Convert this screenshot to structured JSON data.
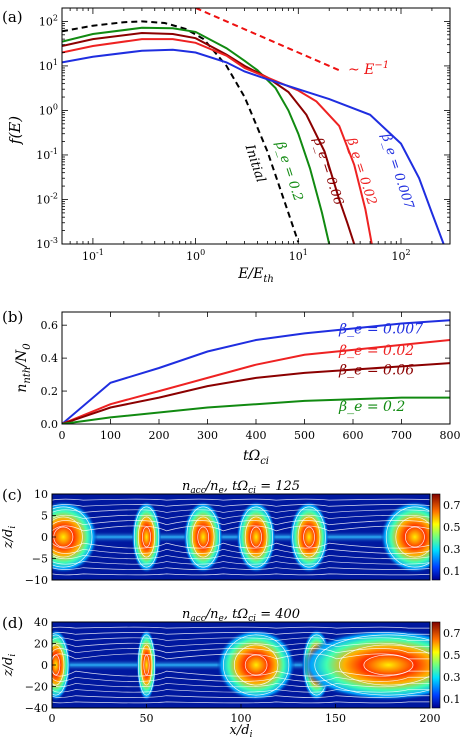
{
  "colors": {
    "beta_0007": "#1f2ee0",
    "beta_002": "#ee2222",
    "beta_006": "#8b0000",
    "beta_02": "#118a11",
    "initial": "#000000",
    "powerlaw": "#ee1111"
  },
  "chart_data": [
    {
      "type": "line",
      "panel": "(a)",
      "xlabel": "E/E_th",
      "ylabel": "f(E)",
      "xscale": "log",
      "yscale": "log",
      "xlim": [
        0.05,
        300
      ],
      "ylim": [
        0.001,
        200
      ],
      "xticks": [
        "10^-1",
        "10^0",
        "10^1",
        "10^2"
      ],
      "yticks": [
        "10^-3",
        "10^-2",
        "10^-1",
        "10^0",
        "10^1",
        "10^2"
      ],
      "powerlaw_label": "~ E^-1",
      "powerlaw": {
        "x": [
          1.0,
          25
        ],
        "y": [
          200,
          8
        ]
      },
      "series": [
        {
          "name": "Initial",
          "style": "dashed",
          "color": "#000000",
          "label_x": 3.5,
          "label_y": 0.06,
          "x": [
            0.05,
            0.1,
            0.2,
            0.3,
            0.5,
            0.8,
            1.2,
            2,
            3,
            5,
            8,
            10
          ],
          "y": [
            60,
            80,
            96,
            100,
            92,
            68,
            40,
            10,
            2.0,
            0.12,
            0.005,
            0.0011
          ]
        },
        {
          "name": "β_e = 0.2",
          "style": "solid",
          "color": "#118a11",
          "label_x": 7.5,
          "label_y": 0.04,
          "x": [
            0.05,
            0.1,
            0.3,
            0.6,
            1,
            2,
            3,
            4,
            6,
            8,
            10,
            13,
            17,
            20
          ],
          "y": [
            35,
            52,
            72,
            70,
            58,
            25,
            13,
            8,
            3.2,
            1.0,
            0.3,
            0.05,
            0.005,
            0.001
          ]
        },
        {
          "name": "β_e = 0.06",
          "style": "solid",
          "color": "#8b0000",
          "label_x": 18,
          "label_y": 0.04,
          "x": [
            0.05,
            0.1,
            0.3,
            0.6,
            1,
            2,
            3,
            5,
            8,
            12,
            18,
            25,
            30,
            35
          ],
          "y": [
            28,
            40,
            55,
            52,
            42,
            18,
            10,
            5.5,
            2.6,
            0.8,
            0.12,
            0.01,
            0.003,
            0.001
          ]
        },
        {
          "name": "β_e = 0.02",
          "style": "solid",
          "color": "#ee2222",
          "label_x": 38,
          "label_y": 0.04,
          "x": [
            0.05,
            0.1,
            0.3,
            0.6,
            1,
            2,
            3,
            5,
            10,
            15,
            25,
            35,
            45,
            52
          ],
          "y": [
            20,
            28,
            40,
            40,
            33,
            17,
            9,
            5.5,
            2.8,
            1.6,
            0.45,
            0.06,
            0.006,
            0.001
          ]
        },
        {
          "name": "β_e = 0.007",
          "style": "solid",
          "color": "#1f2ee0",
          "label_x": 85,
          "label_y": 0.04,
          "x": [
            0.05,
            0.1,
            0.3,
            0.6,
            1,
            2,
            3,
            5,
            10,
            20,
            50,
            100,
            150,
            200,
            260
          ],
          "y": [
            12,
            16,
            22,
            23,
            20,
            12,
            7.5,
            5,
            3.0,
            1.8,
            0.8,
            0.18,
            0.03,
            0.005,
            0.001
          ]
        }
      ]
    },
    {
      "type": "line",
      "panel": "(b)",
      "xlabel": "tΩ_ci",
      "ylabel": "n_nth / N_0",
      "xlim": [
        0,
        800
      ],
      "ylim": [
        0,
        0.68
      ],
      "xticks": [
        0,
        100,
        200,
        300,
        400,
        500,
        600,
        700,
        800
      ],
      "yticks": [
        0.0,
        0.2,
        0.4,
        0.6
      ],
      "series": [
        {
          "name": "β_e = 0.007",
          "color": "#1f2ee0",
          "label_x": 600,
          "label_y": 0.55,
          "x": [
            0,
            100,
            200,
            300,
            400,
            500,
            600,
            700,
            800
          ],
          "y": [
            0,
            0.25,
            0.34,
            0.44,
            0.51,
            0.55,
            0.58,
            0.61,
            0.63
          ]
        },
        {
          "name": "β_e = 0.02",
          "color": "#ee2222",
          "label_x": 600,
          "label_y": 0.42,
          "x": [
            0,
            100,
            200,
            300,
            400,
            500,
            600,
            700,
            800
          ],
          "y": [
            0,
            0.12,
            0.2,
            0.28,
            0.36,
            0.42,
            0.45,
            0.48,
            0.51
          ]
        },
        {
          "name": "β_e = 0.06",
          "color": "#8b0000",
          "label_x": 600,
          "label_y": 0.3,
          "x": [
            0,
            100,
            200,
            300,
            400,
            500,
            600,
            700,
            800
          ],
          "y": [
            0,
            0.1,
            0.16,
            0.23,
            0.28,
            0.31,
            0.33,
            0.35,
            0.37
          ]
        },
        {
          "name": "β_e = 0.2",
          "color": "#118a11",
          "label_x": 600,
          "label_y": 0.08,
          "x": [
            0,
            100,
            200,
            300,
            400,
            500,
            600,
            700,
            800
          ],
          "y": [
            0,
            0.04,
            0.07,
            0.1,
            0.12,
            0.14,
            0.15,
            0.16,
            0.16
          ]
        }
      ]
    },
    {
      "type": "heatmap",
      "panel": "(c)",
      "title": "n_acc/n_e, tΩ_ci = 125",
      "ylabel": "z/d_i",
      "xlim": [
        0,
        200
      ],
      "ylim": [
        -10,
        10
      ],
      "yticks": [
        -10,
        -5,
        0,
        5,
        10
      ],
      "colorbar_ticks": [
        "0.7",
        "0.5",
        "0.3",
        "0.1"
      ],
      "islands": [
        {
          "x": 6,
          "w": 14
        },
        {
          "x": 50,
          "w": 6
        },
        {
          "x": 80,
          "w": 8
        },
        {
          "x": 108,
          "w": 8
        },
        {
          "x": 136,
          "w": 8
        },
        {
          "x": 192,
          "w": 14
        }
      ]
    },
    {
      "type": "heatmap",
      "panel": "(d)",
      "title": "n_acc/n_e, tΩ_ci = 400",
      "xlabel": "x/d_i",
      "ylabel": "z/d_i",
      "xlim": [
        0,
        200
      ],
      "ylim": [
        -40,
        40
      ],
      "xticks": [
        0,
        50,
        100,
        150,
        200
      ],
      "yticks": [
        -40,
        -20,
        0,
        20,
        40
      ],
      "colorbar_ticks": [
        "0.7",
        "0.5",
        "0.3",
        "0.1"
      ],
      "islands": [
        {
          "x": 2,
          "w": 6
        },
        {
          "x": 50,
          "w": 4
        },
        {
          "x": 108,
          "w": 16
        },
        {
          "x": 140,
          "w": 6
        },
        {
          "x": 178,
          "w": 36
        }
      ]
    }
  ]
}
